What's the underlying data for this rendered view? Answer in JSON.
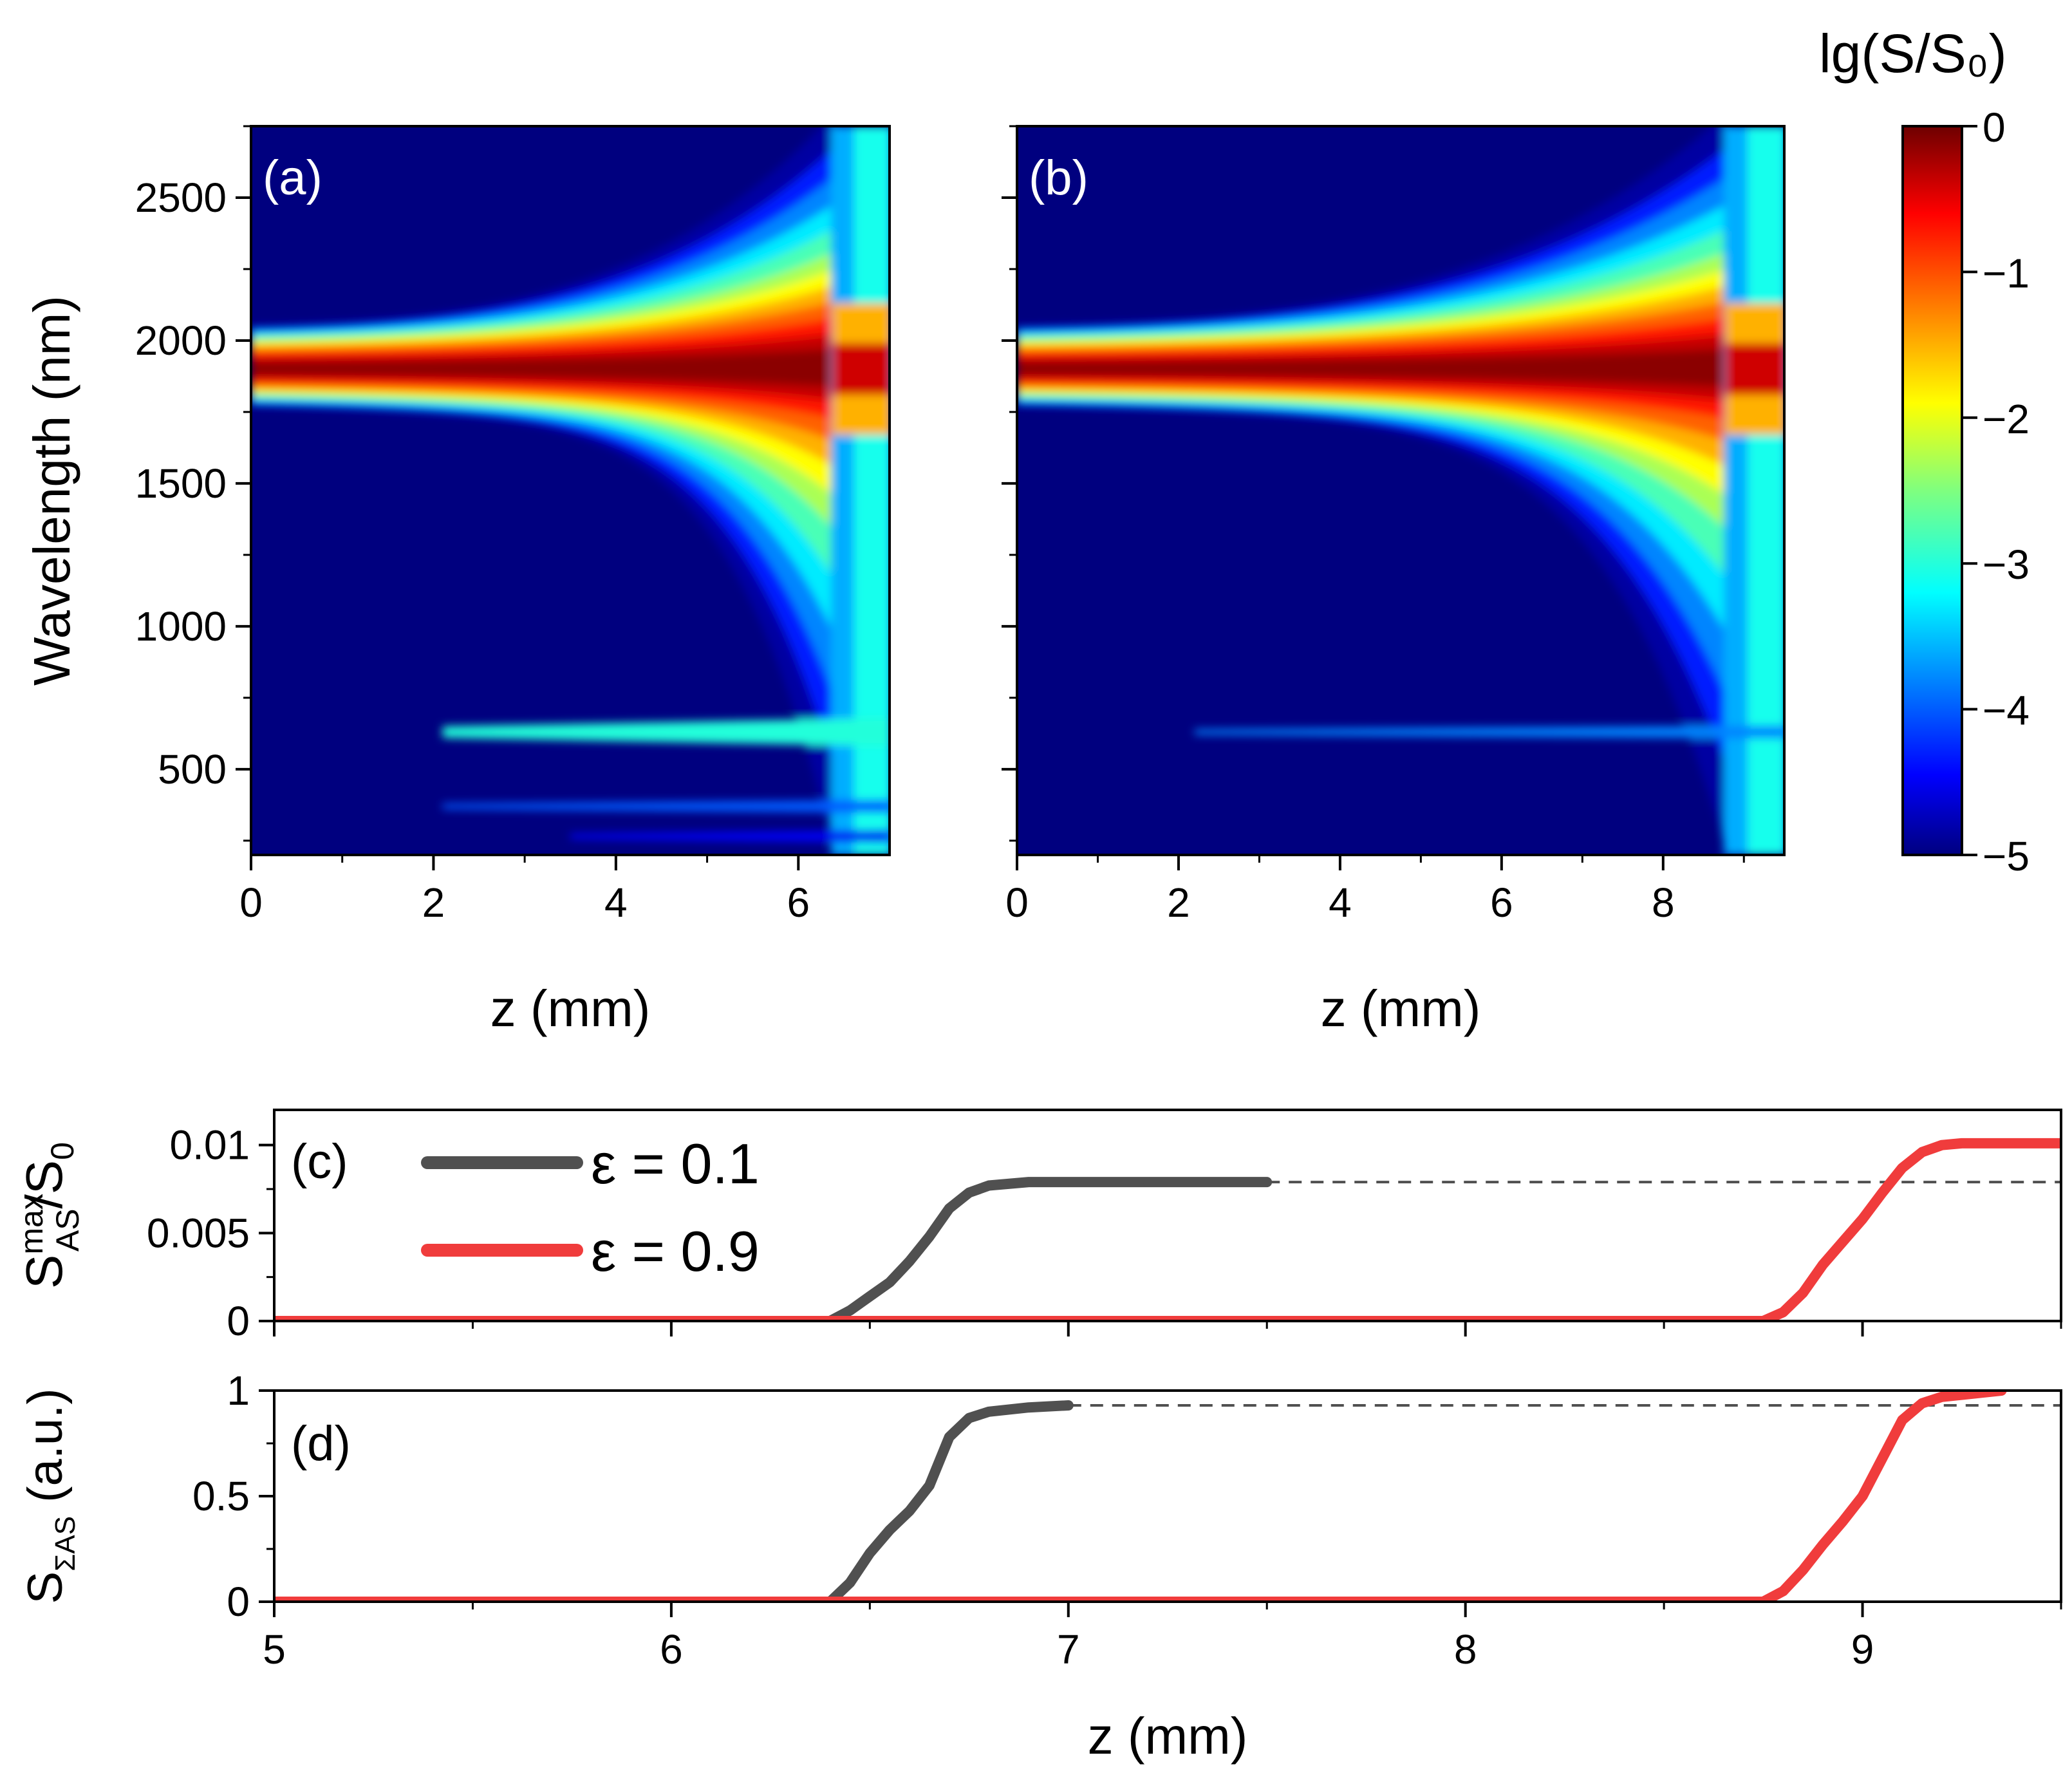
{
  "chart_data": [
    {
      "type": "heatmap",
      "panel": "(a)",
      "xlabel": "z (mm)",
      "ylabel": "Wavelength (nm)",
      "xlim": [
        0,
        7
      ],
      "ylim": [
        200,
        2750
      ],
      "xticks": [
        0,
        2,
        4,
        6
      ],
      "yticks": [
        500,
        1000,
        1500,
        2000,
        2500
      ],
      "break_z": 6.4,
      "features": [
        {
          "name": "pump band",
          "center_nm": 1900,
          "value_lg": 0
        },
        {
          "name": "anti-Stokes line 1",
          "wavelength_nm": 630,
          "z_start_mm": 2.1,
          "value_lg": -3
        },
        {
          "name": "anti-Stokes line 2",
          "wavelength_nm": 370,
          "z_start_mm": 2.1,
          "value_lg": -4
        },
        {
          "name": "anti-Stokes line 3",
          "wavelength_nm": 265,
          "z_start_mm": 3.5,
          "value_lg": -4.5
        }
      ]
    },
    {
      "type": "heatmap",
      "panel": "(b)",
      "xlabel": "z (mm)",
      "ylabel": "Wavelength (nm)",
      "xlim": [
        0,
        9.5
      ],
      "ylim": [
        200,
        2750
      ],
      "xticks": [
        0,
        2,
        4,
        6,
        8
      ],
      "yticks": [
        500,
        1000,
        1500,
        2000,
        2500
      ],
      "break_z": 8.8,
      "features": [
        {
          "name": "pump band",
          "center_nm": 1900,
          "value_lg": 0
        },
        {
          "name": "anti-Stokes line 1",
          "wavelength_nm": 630,
          "z_start_mm": 2.2,
          "value_lg": -3.8
        }
      ]
    },
    {
      "type": "colorbar",
      "title": "lg(S/S₀)",
      "range": [
        -5,
        0
      ],
      "ticks": [
        "0",
        "−1",
        "−2",
        "−3",
        "−4",
        "−5"
      ]
    },
    {
      "type": "line",
      "panel": "(c)",
      "xlabel": "",
      "ylabel": "S_AS^max/S_0",
      "xlim": [
        5,
        9.5
      ],
      "ylim": [
        0,
        0.012
      ],
      "xticks": [
        5,
        6,
        7,
        8,
        9
      ],
      "yticks": [
        "0",
        "0.005",
        "0.01"
      ],
      "reference_level": 0.0079,
      "series": [
        {
          "name": "ε = 0.1",
          "color": "#505050",
          "x": [
            5.0,
            6.4,
            6.45,
            6.5,
            6.55,
            6.6,
            6.65,
            6.7,
            6.75,
            6.8,
            6.9,
            7.0,
            7.2,
            7.5
          ],
          "y": [
            0,
            0,
            0.0006,
            0.0014,
            0.0022,
            0.0034,
            0.0048,
            0.0064,
            0.0073,
            0.0077,
            0.0079,
            0.0079,
            0.0079,
            0.0079
          ]
        },
        {
          "name": "ε = 0.9",
          "color": "#f03c3c",
          "x": [
            5.0,
            8.75,
            8.8,
            8.85,
            8.9,
            8.95,
            9.0,
            9.05,
            9.1,
            9.15,
            9.2,
            9.25,
            9.3,
            9.5
          ],
          "y": [
            0,
            0,
            0.0005,
            0.0016,
            0.0032,
            0.0045,
            0.0058,
            0.0073,
            0.0087,
            0.0096,
            0.01,
            0.0101,
            0.0101,
            0.0101
          ]
        }
      ]
    },
    {
      "type": "line",
      "panel": "(d)",
      "xlabel": "z (mm)",
      "ylabel": "S_ΣAS (a.u.)",
      "xlim": [
        5,
        9.5
      ],
      "ylim": [
        0,
        1
      ],
      "xticks": [
        5,
        6,
        7,
        8,
        9
      ],
      "yticks": [
        "0",
        "0.5",
        "1"
      ],
      "reference_level": 0.93,
      "series": [
        {
          "name": "ε = 0.1",
          "color": "#505050",
          "x": [
            5.0,
            6.4,
            6.45,
            6.5,
            6.55,
            6.6,
            6.65,
            6.7,
            6.75,
            6.8,
            6.9,
            7.0
          ],
          "y": [
            0,
            0,
            0.09,
            0.23,
            0.34,
            0.43,
            0.55,
            0.78,
            0.87,
            0.9,
            0.92,
            0.93
          ]
        },
        {
          "name": "ε = 0.9",
          "color": "#f03c3c",
          "x": [
            5.0,
            8.75,
            8.8,
            8.85,
            8.9,
            8.95,
            9.0,
            9.05,
            9.1,
            9.15,
            9.2,
            9.3,
            9.35
          ],
          "y": [
            0,
            0,
            0.05,
            0.15,
            0.27,
            0.38,
            0.5,
            0.68,
            0.86,
            0.94,
            0.97,
            0.99,
            1.0
          ]
        }
      ]
    }
  ]
}
